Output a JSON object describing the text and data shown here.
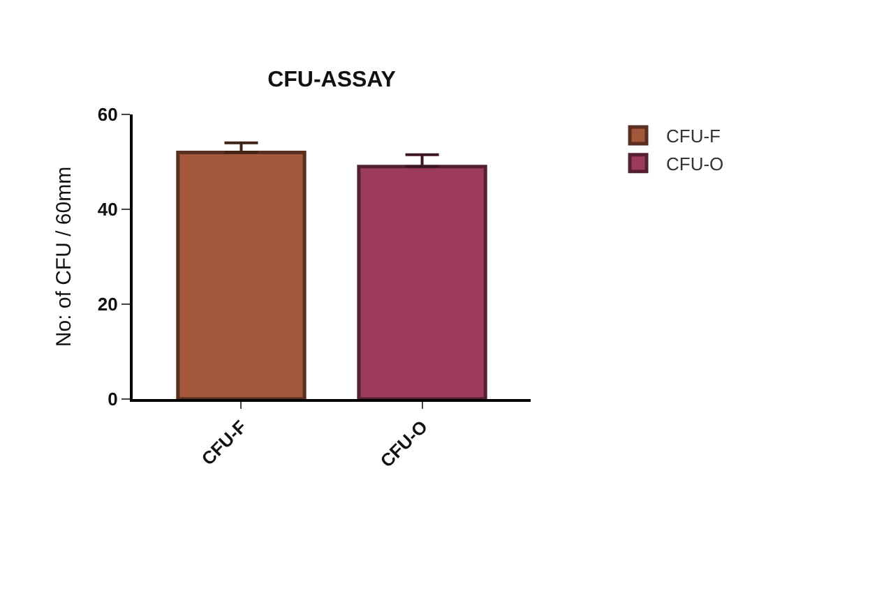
{
  "chart_data": {
    "type": "bar",
    "title": "CFU-ASSAY",
    "ylabel": "No: of CFU / 60mm",
    "categories": [
      "CFU-F",
      "CFU-O"
    ],
    "series": [
      {
        "name": "CFU-F",
        "color": "#a3573b",
        "values": [
          52,
          null
        ],
        "errors": [
          [
            52,
            54
          ],
          null
        ]
      },
      {
        "name": "CFU-O",
        "color": "#9c3b5e",
        "values": [
          null,
          49
        ],
        "errors": [
          null,
          [
            49,
            51.5
          ]
        ]
      }
    ],
    "ylim": [
      0,
      60
    ],
    "yticks": [
      0,
      20,
      40,
      60
    ],
    "legend": "top right"
  }
}
